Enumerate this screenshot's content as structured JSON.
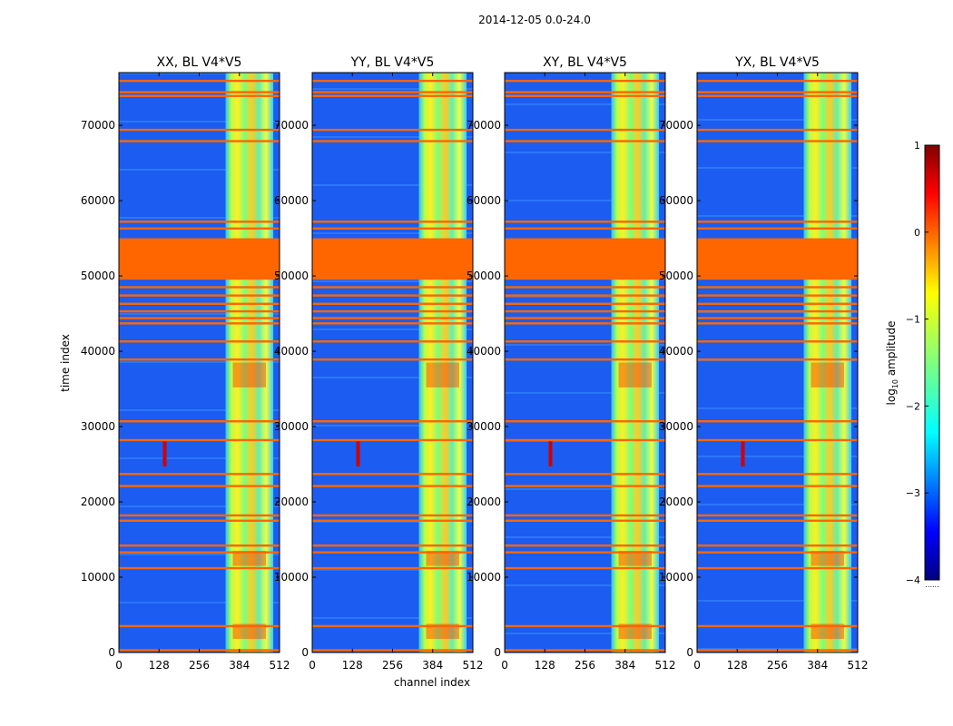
{
  "figure_title": "2014-12-05 0.0-24.0",
  "chart_data": {
    "type": "heatmap",
    "suptitle": "2014-12-05 0.0-24.0",
    "xlabel": "channel index",
    "ylabel": "time index",
    "xlim": [
      0,
      512
    ],
    "ylim": [
      0,
      77000
    ],
    "xticks": [
      0,
      128,
      256,
      384,
      512
    ],
    "yticks": [
      0,
      10000,
      20000,
      30000,
      40000,
      50000,
      60000,
      70000
    ],
    "colorscale": "jet",
    "colorbar": {
      "label": "log10 amplitude",
      "label_prefix": "log",
      "label_sub": "10",
      "label_suffix": " amplitude",
      "range": [
        -4,
        1
      ],
      "ticks": [
        1,
        0,
        -1,
        -2,
        -3,
        -4
      ],
      "tick_labels": [
        "1",
        "0",
        "−1",
        "−2",
        "−3",
        "−4"
      ],
      "bottom_mark": "......"
    },
    "flag_color": "#ff6600",
    "flagged_time_block": [
      49500,
      55000
    ],
    "flagged_time_lines": [
      300,
      3500,
      11200,
      13300,
      14200,
      17500,
      18200,
      22100,
      23700,
      28200,
      30700,
      38900,
      41300,
      43700,
      44400,
      45300,
      46300,
      47400,
      48500,
      56300,
      57200,
      67900,
      69400,
      73900,
      74400,
      75900
    ],
    "rfi_channel_band": [
      340,
      492
    ],
    "panels": [
      {
        "title": "XX, BL V4*V5",
        "pol": "XX",
        "baseline": "V4*V5"
      },
      {
        "title": "YY, BL V4*V5",
        "pol": "YY",
        "baseline": "V4*V5"
      },
      {
        "title": "XY, BL V4*V5",
        "pol": "XY",
        "baseline": "V4*V5"
      },
      {
        "title": "YX, BL V4*V5",
        "pol": "YX",
        "baseline": "V4*V5"
      }
    ]
  }
}
